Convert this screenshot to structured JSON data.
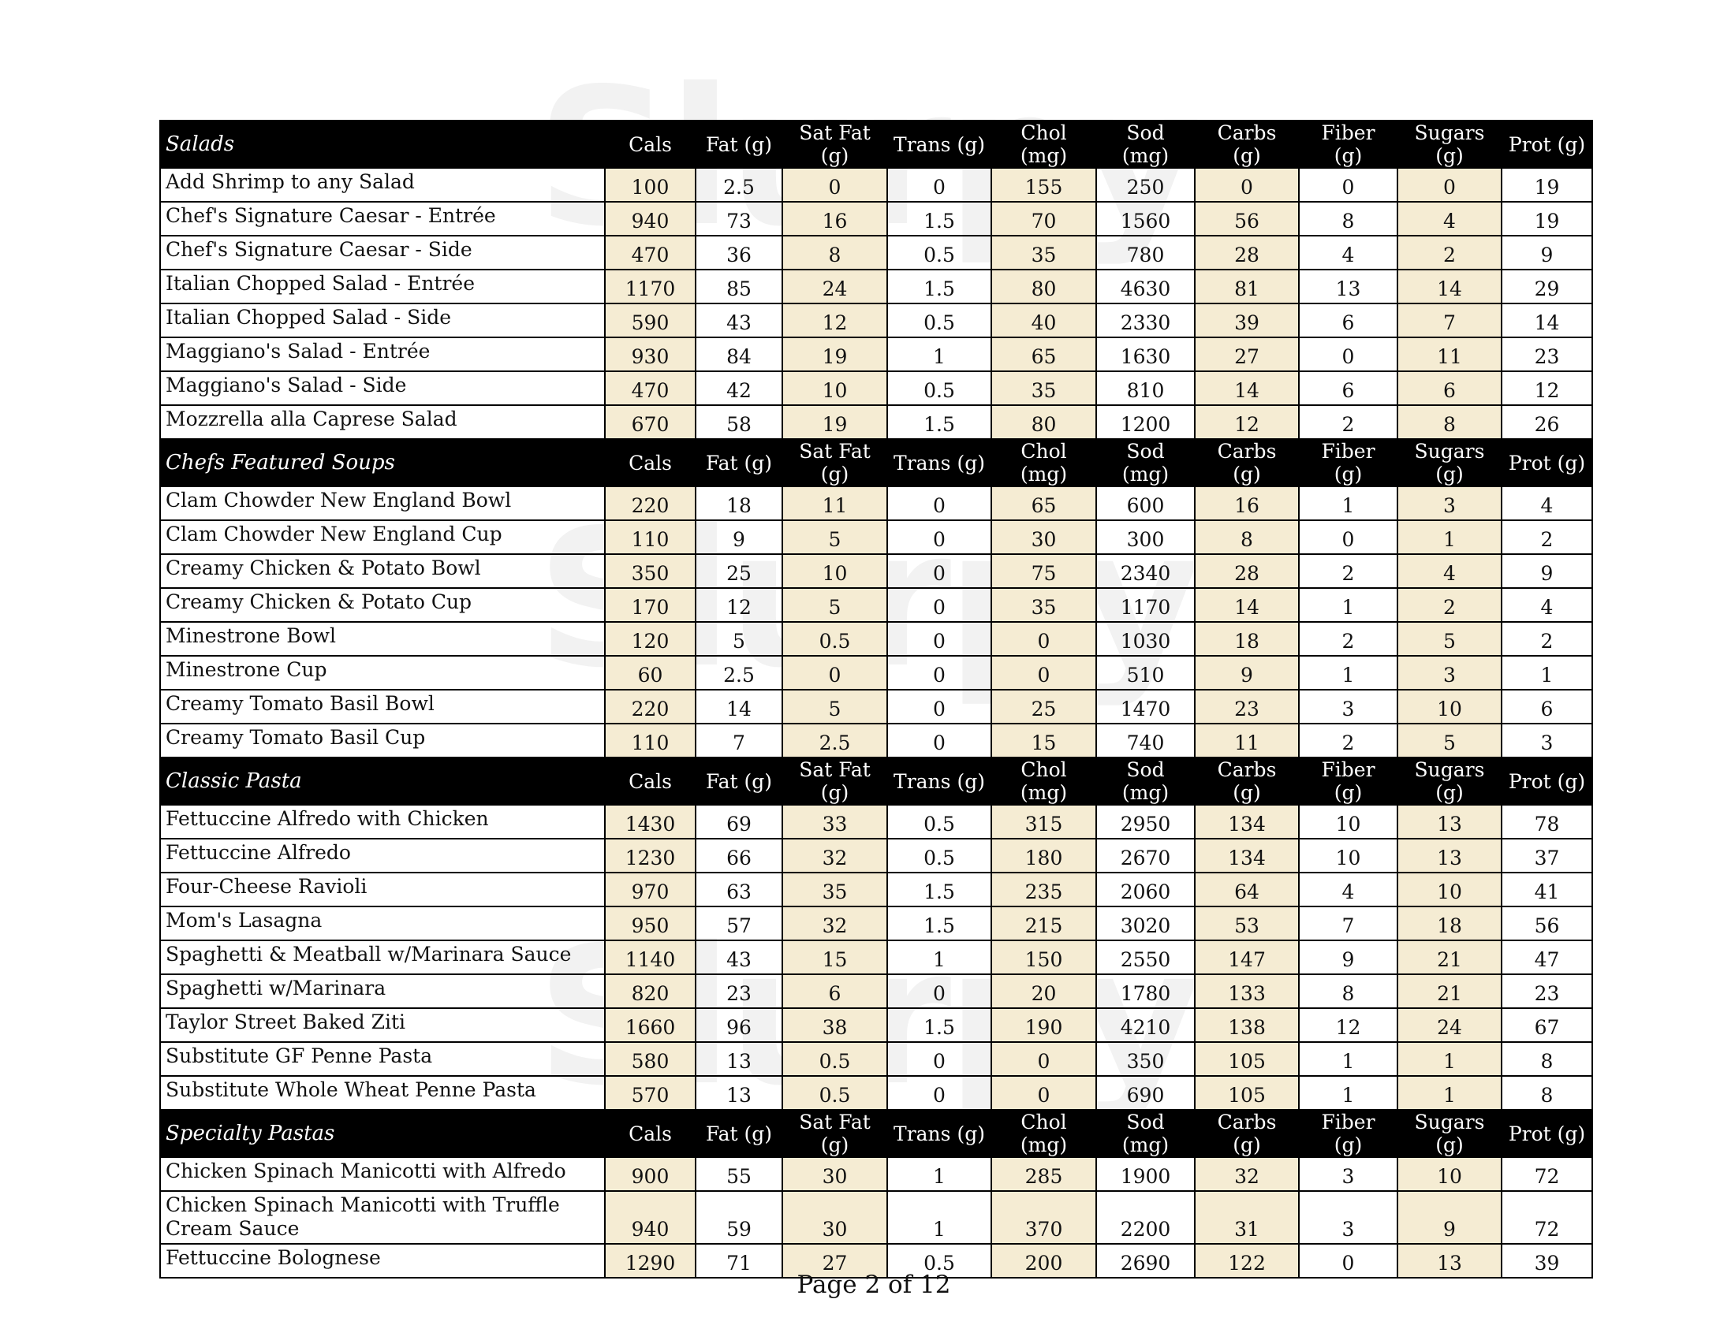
{
  "columns": [
    "Cals",
    "Fat (g)",
    "Sat Fat (g)",
    "Trans (g)",
    "Chol (mg)",
    "Sod (mg)",
    "Carbs (g)",
    "Fiber (g)",
    "Sugars (g)",
    "Prot (g)"
  ],
  "shaded_columns": [
    "Cals",
    "Sat Fat (g)",
    "Chol (mg)",
    "Carbs (g)",
    "Sugars (g)"
  ],
  "colors": {
    "header_bg": "#000000",
    "shade": "#f5ecd3"
  },
  "watermark": "Slurpy",
  "sections": [
    {
      "title": "Salads",
      "rows": [
        {
          "name": "Add Shrimp to any Salad",
          "values": [
            "100",
            "2.5",
            "0",
            "0",
            "155",
            "250",
            "0",
            "0",
            "0",
            "19"
          ]
        },
        {
          "name": "Chef's Signature Caesar - Entrée",
          "values": [
            "940",
            "73",
            "16",
            "1.5",
            "70",
            "1560",
            "56",
            "8",
            "4",
            "19"
          ]
        },
        {
          "name": "Chef's Signature Caesar - Side",
          "values": [
            "470",
            "36",
            "8",
            "0.5",
            "35",
            "780",
            "28",
            "4",
            "2",
            "9"
          ]
        },
        {
          "name": "Italian Chopped Salad - Entrée",
          "values": [
            "1170",
            "85",
            "24",
            "1.5",
            "80",
            "4630",
            "81",
            "13",
            "14",
            "29"
          ]
        },
        {
          "name": "Italian Chopped Salad - Side",
          "values": [
            "590",
            "43",
            "12",
            "0.5",
            "40",
            "2330",
            "39",
            "6",
            "7",
            "14"
          ]
        },
        {
          "name": "Maggiano's Salad - Entrée",
          "values": [
            "930",
            "84",
            "19",
            "1",
            "65",
            "1630",
            "27",
            "0",
            "11",
            "23"
          ]
        },
        {
          "name": "Maggiano's Salad - Side",
          "values": [
            "470",
            "42",
            "10",
            "0.5",
            "35",
            "810",
            "14",
            "6",
            "6",
            "12"
          ]
        },
        {
          "name": "Mozzrella alla Caprese Salad",
          "values": [
            "670",
            "58",
            "19",
            "1.5",
            "80",
            "1200",
            "12",
            "2",
            "8",
            "26"
          ]
        }
      ]
    },
    {
      "title": "Chefs Featured Soups",
      "rows": [
        {
          "name": "Clam Chowder New England Bowl",
          "values": [
            "220",
            "18",
            "11",
            "0",
            "65",
            "600",
            "16",
            "1",
            "3",
            "4"
          ]
        },
        {
          "name": "Clam Chowder New England Cup",
          "values": [
            "110",
            "9",
            "5",
            "0",
            "30",
            "300",
            "8",
            "0",
            "1",
            "2"
          ]
        },
        {
          "name": "Creamy Chicken & Potato Bowl",
          "values": [
            "350",
            "25",
            "10",
            "0",
            "75",
            "2340",
            "28",
            "2",
            "4",
            "9"
          ]
        },
        {
          "name": "Creamy Chicken & Potato Cup",
          "values": [
            "170",
            "12",
            "5",
            "0",
            "35",
            "1170",
            "14",
            "1",
            "2",
            "4"
          ]
        },
        {
          "name": "Minestrone Bowl",
          "values": [
            "120",
            "5",
            "0.5",
            "0",
            "0",
            "1030",
            "18",
            "2",
            "5",
            "2"
          ]
        },
        {
          "name": "Minestrone Cup",
          "values": [
            "60",
            "2.5",
            "0",
            "0",
            "0",
            "510",
            "9",
            "1",
            "3",
            "1"
          ]
        },
        {
          "name": "Creamy Tomato Basil Bowl",
          "values": [
            "220",
            "14",
            "5",
            "0",
            "25",
            "1470",
            "23",
            "3",
            "10",
            "6"
          ]
        },
        {
          "name": "Creamy Tomato Basil Cup",
          "values": [
            "110",
            "7",
            "2.5",
            "0",
            "15",
            "740",
            "11",
            "2",
            "5",
            "3"
          ]
        }
      ]
    },
    {
      "title": "Classic Pasta",
      "rows": [
        {
          "name": "Fettuccine Alfredo with Chicken",
          "values": [
            "1430",
            "69",
            "33",
            "0.5",
            "315",
            "2950",
            "134",
            "10",
            "13",
            "78"
          ]
        },
        {
          "name": "Fettuccine Alfredo",
          "values": [
            "1230",
            "66",
            "32",
            "0.5",
            "180",
            "2670",
            "134",
            "10",
            "13",
            "37"
          ]
        },
        {
          "name": "Four-Cheese Ravioli",
          "values": [
            "970",
            "63",
            "35",
            "1.5",
            "235",
            "2060",
            "64",
            "4",
            "10",
            "41"
          ]
        },
        {
          "name": "Mom's Lasagna",
          "values": [
            "950",
            "57",
            "32",
            "1.5",
            "215",
            "3020",
            "53",
            "7",
            "18",
            "56"
          ]
        },
        {
          "name": "Spaghetti & Meatball w/Marinara Sauce",
          "values": [
            "1140",
            "43",
            "15",
            "1",
            "150",
            "2550",
            "147",
            "9",
            "21",
            "47"
          ]
        },
        {
          "name": "Spaghetti w/Marinara",
          "values": [
            "820",
            "23",
            "6",
            "0",
            "20",
            "1780",
            "133",
            "8",
            "21",
            "23"
          ]
        },
        {
          "name": "Taylor Street Baked Ziti",
          "values": [
            "1660",
            "96",
            "38",
            "1.5",
            "190",
            "4210",
            "138",
            "12",
            "24",
            "67"
          ]
        },
        {
          "name": "Substitute GF Penne Pasta",
          "values": [
            "580",
            "13",
            "0.5",
            "0",
            "0",
            "350",
            "105",
            "1",
            "1",
            "8"
          ]
        },
        {
          "name": "Substitute Whole Wheat Penne Pasta",
          "values": [
            "570",
            "13",
            "0.5",
            "0",
            "0",
            "690",
            "105",
            "1",
            "1",
            "8"
          ]
        }
      ]
    },
    {
      "title": "Specialty Pastas",
      "rows": [
        {
          "name": "Chicken Spinach Manicotti with Alfredo",
          "values": [
            "900",
            "55",
            "30",
            "1",
            "285",
            "1900",
            "32",
            "3",
            "10",
            "72"
          ]
        },
        {
          "name": "Chicken Spinach Manicotti with Truffle Cream Sauce",
          "values": [
            "940",
            "59",
            "30",
            "1",
            "370",
            "2200",
            "31",
            "3",
            "9",
            "72"
          ]
        },
        {
          "name": "Fettuccine Bolognese",
          "values": [
            "1290",
            "71",
            "27",
            "0.5",
            "200",
            "2690",
            "122",
            "0",
            "13",
            "39"
          ]
        }
      ]
    }
  ],
  "footer": "Page 2 of 12"
}
